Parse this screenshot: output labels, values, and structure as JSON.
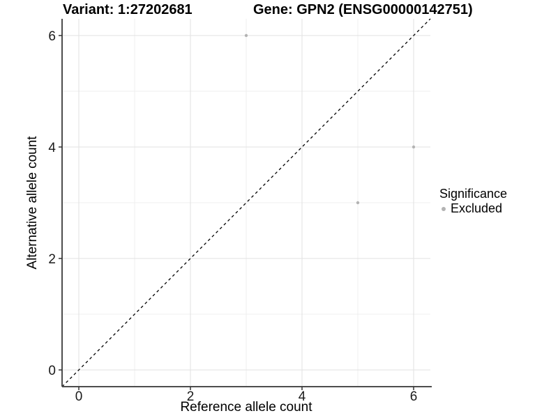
{
  "title": {
    "variant": "Variant: 1:27202681",
    "gene": "Gene: GPN2 (ENSG00000142751)"
  },
  "chart_data": {
    "type": "scatter",
    "xlabel": "Reference allele count",
    "ylabel": "Alternative allele count",
    "xlim": [
      -0.3,
      6.3
    ],
    "ylim": [
      -0.3,
      6.3
    ],
    "x_ticks": [
      0,
      2,
      4,
      6
    ],
    "y_ticks": [
      0,
      2,
      4,
      6
    ],
    "x_minor_ticks": [
      1,
      3,
      5
    ],
    "y_minor_ticks": [
      1,
      3,
      5
    ],
    "grid": true,
    "identity_line": {
      "style": "dashed",
      "color": "#000000",
      "from": [
        -0.3,
        -0.3
      ],
      "to": [
        6.3,
        6.3
      ]
    },
    "series": [
      {
        "name": "Excluded",
        "color": "#b3b3b3",
        "points": [
          {
            "x": 3,
            "y": 6
          },
          {
            "x": 6,
            "y": 4
          },
          {
            "x": 5,
            "y": 3
          }
        ]
      }
    ],
    "legend": {
      "title": "Significance",
      "position": "right",
      "entries": [
        {
          "label": "Excluded",
          "color": "#b3b3b3",
          "marker": "circle"
        }
      ]
    }
  },
  "colors": {
    "grid_major": "#e2e2e2",
    "grid_minor": "#efefef",
    "axis_line": "#4d4d4d",
    "tick_mark": "#333333",
    "tick_text": "#1a1a1a",
    "point": "#b3b3b3",
    "dashed_line": "#000000"
  }
}
